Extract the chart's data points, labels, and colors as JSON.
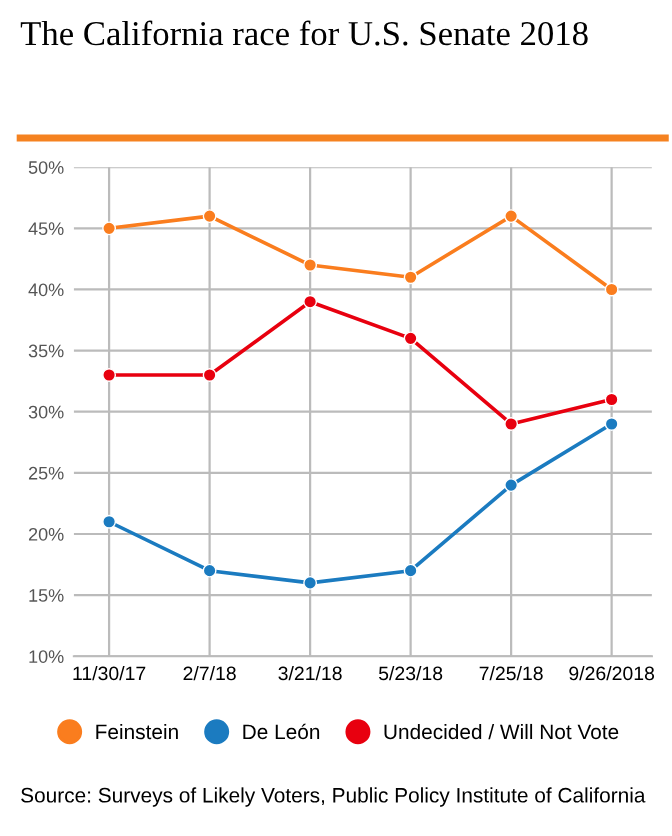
{
  "chart_data": {
    "type": "line",
    "title": "The California race for U.S. Senate 2018",
    "categories": [
      "11/30/17",
      "2/7/18",
      "3/21/18",
      "5/23/18",
      "7/25/18",
      "9/26/2018"
    ],
    "series": [
      {
        "name": "Feinstein",
        "color": "#fa7d1e",
        "values": [
          45,
          46,
          42,
          41,
          46,
          40
        ]
      },
      {
        "name": "De León",
        "color": "#1b7bc0",
        "values": [
          21,
          17,
          16,
          17,
          24,
          29
        ]
      },
      {
        "name": "Undecided / Will Not Vote",
        "color": "#e8000f",
        "values": [
          33,
          33,
          39,
          36,
          29,
          31
        ]
      }
    ],
    "ylim": [
      10,
      50
    ],
    "yticks": [
      {
        "value": 10,
        "label": "10%"
      },
      {
        "value": 15,
        "label": "15%"
      },
      {
        "value": 20,
        "label": "20%"
      },
      {
        "value": 25,
        "label": "25%"
      },
      {
        "value": 30,
        "label": "30%"
      },
      {
        "value": 35,
        "label": "35%"
      },
      {
        "value": 40,
        "label": "40%"
      },
      {
        "value": 45,
        "label": "45%"
      },
      {
        "value": 50,
        "label": "50%"
      }
    ],
    "grid": true,
    "legend": "bottom",
    "marker": "circle",
    "line_style": "solid",
    "annotations": [
      "Source: Surveys of Likely Voters, Public Policy Institute of California"
    ]
  }
}
